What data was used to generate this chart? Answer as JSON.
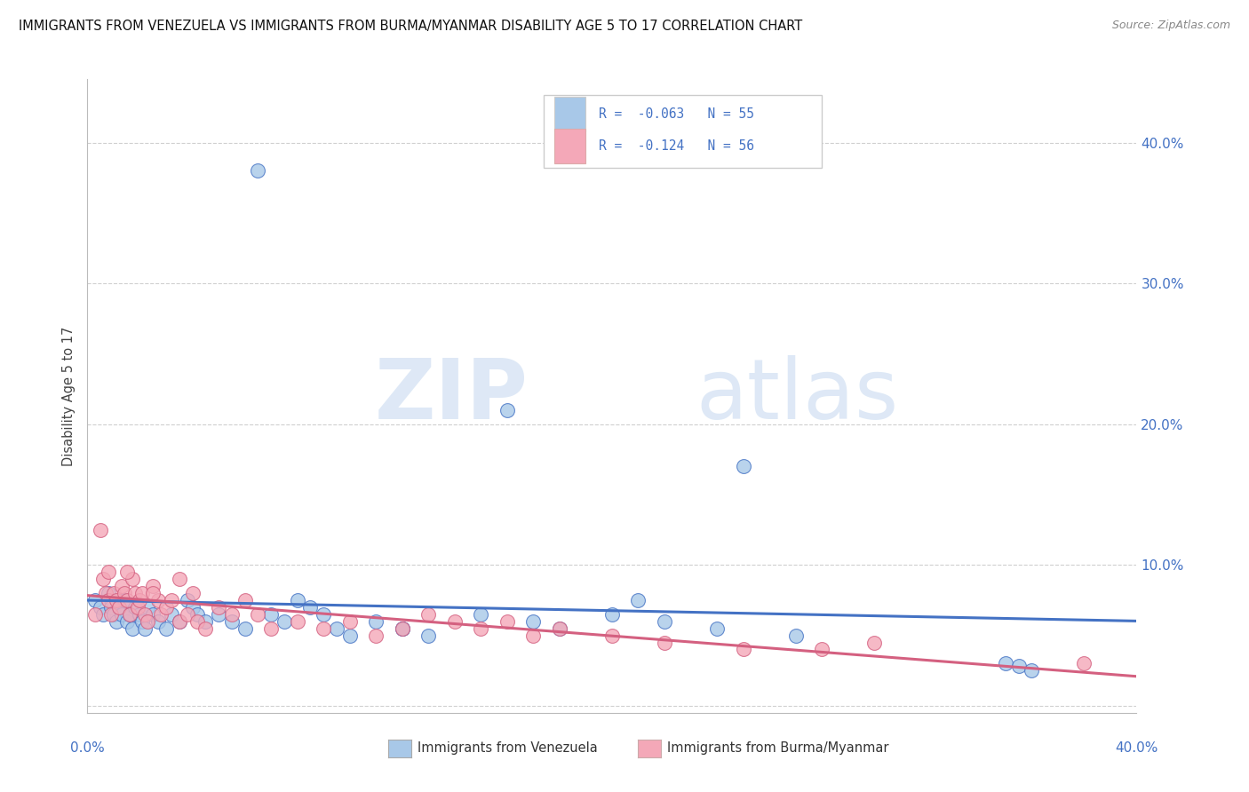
{
  "title": "IMMIGRANTS FROM VENEZUELA VS IMMIGRANTS FROM BURMA/MYANMAR DISABILITY AGE 5 TO 17 CORRELATION CHART",
  "source": "Source: ZipAtlas.com",
  "ylabel": "Disability Age 5 to 17",
  "legend_label1": "Immigrants from Venezuela",
  "legend_label2": "Immigrants from Burma/Myanmar",
  "r1": -0.063,
  "n1": 55,
  "r2": -0.124,
  "n2": 56,
  "color_venezuela": "#a8c8e8",
  "color_burma": "#f4a8b8",
  "color_venezuela_line": "#4472c4",
  "color_burma_line": "#d46080",
  "xlim": [
    0.0,
    0.4
  ],
  "ylim": [
    -0.005,
    0.445
  ],
  "yticks": [
    0.0,
    0.1,
    0.2,
    0.3,
    0.4
  ],
  "ytick_labels": [
    "",
    "10.0%",
    "20.0%",
    "30.0%",
    "40.0%"
  ],
  "xtick_labels": [
    "0.0%",
    "",
    "",
    "",
    "",
    "40.0%"
  ],
  "venezuela_x": [
    0.003,
    0.005,
    0.006,
    0.008,
    0.009,
    0.01,
    0.011,
    0.012,
    0.013,
    0.014,
    0.015,
    0.016,
    0.017,
    0.018,
    0.02,
    0.021,
    0.022,
    0.023,
    0.025,
    0.027,
    0.03,
    0.032,
    0.035,
    0.038,
    0.04,
    0.042,
    0.045,
    0.05,
    0.055,
    0.06,
    0.065,
    0.07,
    0.075,
    0.08,
    0.085,
    0.09,
    0.095,
    0.1,
    0.11,
    0.12,
    0.13,
    0.15,
    0.16,
    0.17,
    0.18,
    0.2,
    0.22,
    0.24,
    0.25,
    0.27,
    0.35,
    0.355,
    0.36,
    0.12,
    0.21
  ],
  "venezuela_y": [
    0.075,
    0.07,
    0.065,
    0.08,
    0.07,
    0.065,
    0.06,
    0.07,
    0.065,
    0.075,
    0.06,
    0.065,
    0.055,
    0.07,
    0.065,
    0.06,
    0.055,
    0.07,
    0.065,
    0.06,
    0.055,
    0.065,
    0.06,
    0.075,
    0.07,
    0.065,
    0.06,
    0.065,
    0.06,
    0.055,
    0.38,
    0.065,
    0.06,
    0.075,
    0.07,
    0.065,
    0.055,
    0.05,
    0.06,
    0.055,
    0.05,
    0.065,
    0.21,
    0.06,
    0.055,
    0.065,
    0.06,
    0.055,
    0.17,
    0.05,
    0.03,
    0.028,
    0.025,
    0.055,
    0.075
  ],
  "burma_x": [
    0.003,
    0.005,
    0.006,
    0.007,
    0.008,
    0.009,
    0.01,
    0.011,
    0.012,
    0.013,
    0.014,
    0.015,
    0.016,
    0.017,
    0.018,
    0.019,
    0.02,
    0.021,
    0.022,
    0.023,
    0.025,
    0.027,
    0.028,
    0.03,
    0.032,
    0.035,
    0.038,
    0.04,
    0.042,
    0.045,
    0.05,
    0.055,
    0.06,
    0.065,
    0.07,
    0.08,
    0.09,
    0.1,
    0.11,
    0.12,
    0.13,
    0.14,
    0.15,
    0.16,
    0.17,
    0.18,
    0.2,
    0.22,
    0.25,
    0.28,
    0.3,
    0.38,
    0.008,
    0.015,
    0.025,
    0.035
  ],
  "burma_y": [
    0.065,
    0.125,
    0.09,
    0.08,
    0.075,
    0.065,
    0.08,
    0.075,
    0.07,
    0.085,
    0.08,
    0.075,
    0.065,
    0.09,
    0.08,
    0.07,
    0.075,
    0.08,
    0.065,
    0.06,
    0.085,
    0.075,
    0.065,
    0.07,
    0.075,
    0.06,
    0.065,
    0.08,
    0.06,
    0.055,
    0.07,
    0.065,
    0.075,
    0.065,
    0.055,
    0.06,
    0.055,
    0.06,
    0.05,
    0.055,
    0.065,
    0.06,
    0.055,
    0.06,
    0.05,
    0.055,
    0.05,
    0.045,
    0.04,
    0.04,
    0.045,
    0.03,
    0.095,
    0.095,
    0.08,
    0.09
  ],
  "watermark_zip": "ZIP",
  "watermark_atlas": "atlas",
  "background_color": "#ffffff",
  "grid_color": "#d0d0d0"
}
